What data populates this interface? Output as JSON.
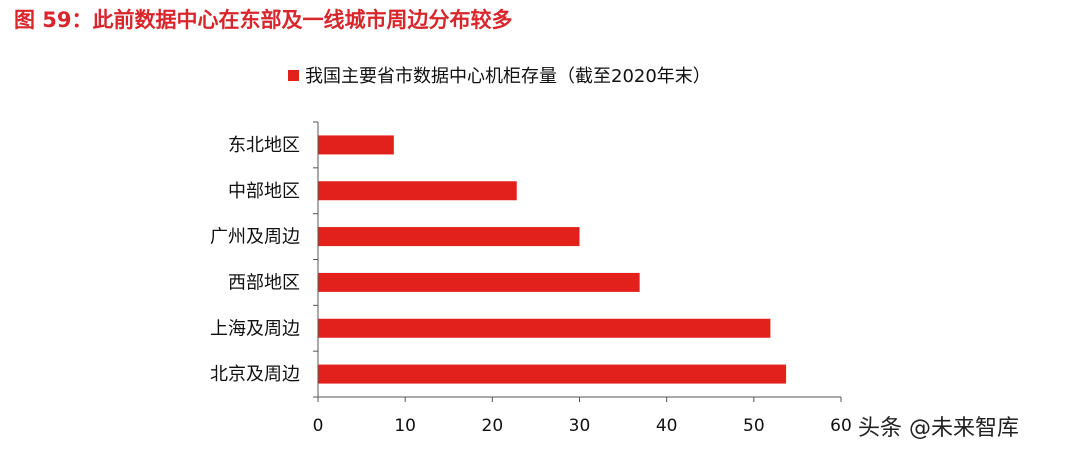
{
  "figure_title": "图 59：此前数据中心在东部及一线城市周边分布较多",
  "watermark": "头条 @未来智库",
  "colors": {
    "title": "#d9262c",
    "bar": "#e3211c",
    "axis": "#555555"
  },
  "chart_data": {
    "type": "bar",
    "orientation": "horizontal",
    "legend": [
      "我国主要省市数据中心机柜存量（截至2020年末）"
    ],
    "legend_position": "top-center",
    "categories": [
      "东北地区",
      "中部地区",
      "广州及周边",
      "西部地区",
      "上海及周边",
      "北京及周边"
    ],
    "series": [
      {
        "name": "我国主要省市数据中心机柜存量（截至2020年末）",
        "values": [
          8.7,
          22.8,
          30.0,
          36.9,
          51.9,
          53.7
        ]
      }
    ],
    "xlim": [
      0,
      60
    ],
    "xticks": [
      "0",
      "10",
      "20",
      "30",
      "40",
      "50",
      "60"
    ],
    "grid": false
  }
}
